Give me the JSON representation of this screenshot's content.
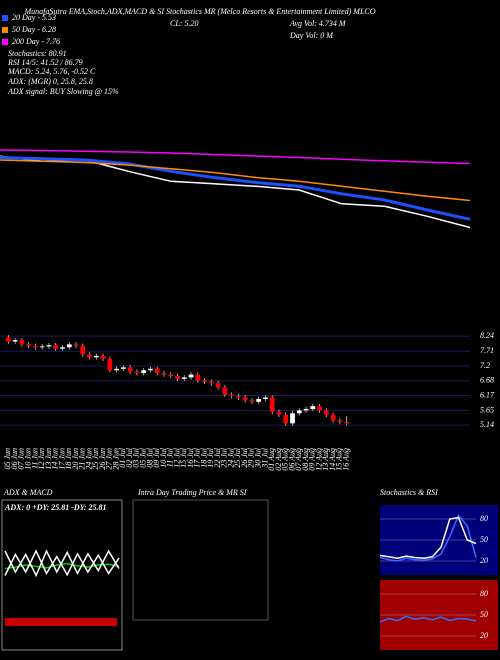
{
  "header": {
    "title": "MunafaSutra EMA,Stoch,ADX,MACD & SI Stochastics MR (Melco Resorts & Entertainment Limited) MLCO",
    "annotations": [
      "Stochastics: 80.91",
      "RSI 14/5: 41.52 / 86.79",
      "MACD: 5.24, 5.76, -0.52 C",
      "ADX: (MGR) 0, 25.8, 25.8",
      "ADX signal: BUY Slowing @ 15%",
      "CL: 5.20",
      "Avg Vol: 4.734 M",
      "Day Vol: 0 M"
    ],
    "intraday_title": "Intra Day Trading Price & MR SI"
  },
  "chart_data": [
    {
      "type": "line",
      "categories": [
        null,
        null,
        null,
        null,
        null,
        null,
        null,
        null,
        null,
        null,
        null,
        null
      ],
      "ylim": [
        1.5,
        10.3
      ],
      "series": [
        {
          "color": "#ffffff",
          "values": [
            8.05,
            7.85,
            7.9,
            7.45,
            7.05,
            6.95,
            6.85,
            6.7,
            6.15,
            6.05,
            5.65,
            5.2
          ]
        },
        {
          "name": "20 Day - 5.53",
          "color": "#1e50ff",
          "values": [
            8.0,
            7.95,
            7.9,
            7.75,
            7.45,
            7.2,
            7.0,
            6.85,
            6.55,
            6.3,
            5.9,
            5.53
          ]
        },
        {
          "name": "50 Day - 6.28",
          "color": "#ff8c00",
          "values": [
            7.9,
            7.85,
            7.8,
            7.7,
            7.55,
            7.4,
            7.2,
            7.05,
            6.85,
            6.65,
            6.45,
            6.28
          ]
        },
        {
          "name": "200 Day - 7.76",
          "color": "#ff00ff",
          "values": [
            8.3,
            8.28,
            8.25,
            8.22,
            8.18,
            8.12,
            8.06,
            8.0,
            7.93,
            7.87,
            7.81,
            7.76
          ]
        }
      ]
    },
    {
      "type": "candlestick",
      "up_color": "#ffffff",
      "down_color": "#ff0000",
      "grid": true,
      "ylim": [
        4.62,
        8.8
      ],
      "yticks": [
        8.24,
        7.71,
        7.2,
        6.68,
        6.17,
        5.65,
        5.14
      ],
      "categories": [
        "05 Jun",
        "06 Jun",
        "07 Jun",
        "10 Jun",
        "11 Jun",
        "12 Jun",
        "13 Jun",
        "14 Jun",
        "17 Jun",
        "18 Jun",
        "20 Jun",
        "21 Jun",
        "24 Jun",
        "25 Jun",
        "26 Jun",
        "27 Jun",
        "28 Jun",
        "01 Jul",
        "02 Jul",
        "03 Jul",
        "05 Jul",
        "08 Jul",
        "09 Jul",
        "10 Jul",
        "11 Jul",
        "12 Jul",
        "15 Jul",
        "16 Jul",
        "17 Jul",
        "18 Jul",
        "19 Jul",
        "22 Jul",
        "23 Jul",
        "24 Jul",
        "25 Jul",
        "26 Jul",
        "29 Jul",
        "30 Jul",
        "31 Jul",
        "01 Aug",
        "02 Aug",
        "05 Aug",
        "06 Aug",
        "07 Aug",
        "08 Aug",
        "09 Aug",
        "12 Aug",
        "13 Aug",
        "14 Aug",
        "15 Aug",
        "16 Aug"
      ],
      "open": [
        8.2,
        8.05,
        8.1,
        7.95,
        7.9,
        7.85,
        7.88,
        7.92,
        7.8,
        7.85,
        7.95,
        7.9,
        7.6,
        7.5,
        7.55,
        7.45,
        7.05,
        7.1,
        7.15,
        7.0,
        6.95,
        7.05,
        7.1,
        6.95,
        6.9,
        6.85,
        6.75,
        6.8,
        6.9,
        6.7,
        6.65,
        6.6,
        6.45,
        6.2,
        6.15,
        6.1,
        6.0,
        5.95,
        6.05,
        6.1,
        5.6,
        5.5,
        5.2,
        5.55,
        5.65,
        5.7,
        5.8,
        5.65,
        5.5,
        5.3,
        5.25
      ],
      "high": [
        8.28,
        8.18,
        8.18,
        8.03,
        7.98,
        7.96,
        8.0,
        8.0,
        7.93,
        8.03,
        8.03,
        7.98,
        7.68,
        7.63,
        7.63,
        7.53,
        7.18,
        7.23,
        7.23,
        7.08,
        7.13,
        7.18,
        7.18,
        7.03,
        6.98,
        6.93,
        6.88,
        6.98,
        6.98,
        6.78,
        6.73,
        6.68,
        6.53,
        6.28,
        6.23,
        6.18,
        6.08,
        6.13,
        6.18,
        6.18,
        5.68,
        5.58,
        5.63,
        5.73,
        5.78,
        5.88,
        5.88,
        5.73,
        5.58,
        5.38,
        5.45
      ],
      "low": [
        7.97,
        7.97,
        7.87,
        7.82,
        7.77,
        7.77,
        7.8,
        7.72,
        7.72,
        7.77,
        7.82,
        7.52,
        7.42,
        7.42,
        7.37,
        6.97,
        6.97,
        7.02,
        6.92,
        6.87,
        6.87,
        6.97,
        6.87,
        6.82,
        6.77,
        6.67,
        6.67,
        6.72,
        6.62,
        6.57,
        6.52,
        6.37,
        6.12,
        6.07,
        6.02,
        5.92,
        5.87,
        5.87,
        5.97,
        5.52,
        5.42,
        5.12,
        5.12,
        5.47,
        5.57,
        5.62,
        5.57,
        5.42,
        5.22,
        5.17,
        5.13
      ],
      "close": [
        8.05,
        8.1,
        7.95,
        7.9,
        7.85,
        7.88,
        7.92,
        7.8,
        7.85,
        7.95,
        7.9,
        7.6,
        7.5,
        7.55,
        7.45,
        7.05,
        7.1,
        7.15,
        7.0,
        6.95,
        7.05,
        7.1,
        6.95,
        6.9,
        6.85,
        6.75,
        6.8,
        6.9,
        6.7,
        6.65,
        6.6,
        6.45,
        6.2,
        6.15,
        6.1,
        6.0,
        5.95,
        6.05,
        6.1,
        5.6,
        5.5,
        5.2,
        5.55,
        5.65,
        5.7,
        5.8,
        5.65,
        5.5,
        5.3,
        5.25,
        5.2
      ]
    },
    {
      "type": "line",
      "title": "ADX & MACD",
      "subtitle": "ADX: 0 +DY: 25.81 -DY: 25.81",
      "ylim": [
        0,
        100
      ],
      "categories": [
        null,
        null,
        null,
        null,
        null,
        null,
        null,
        null,
        null,
        null,
        null,
        null
      ],
      "series": [
        {
          "color": "#00cc00",
          "values": [
            45,
            47,
            50,
            48,
            46,
            50,
            52,
            49,
            47,
            50,
            51,
            48
          ]
        },
        {
          "color": "#ffffff",
          "values": [
            70,
            40,
            65,
            35,
            70,
            40,
            68,
            38,
            66,
            42,
            70,
            45
          ]
        },
        {
          "color": "#ffffff",
          "values": [
            35,
            65,
            40,
            70,
            38,
            62,
            36,
            66,
            40,
            64,
            38,
            60
          ]
        }
      ]
    },
    {
      "type": "line",
      "title": "Stochastics & RSI",
      "ylim": [
        0,
        100
      ],
      "yticks": [
        80,
        50,
        20
      ],
      "background": "#00007a",
      "categories": [
        null,
        null,
        null,
        null,
        null,
        null,
        null,
        null,
        null,
        null,
        null,
        null
      ],
      "series": [
        {
          "color": "#3a6bff",
          "values": [
            25,
            22,
            20,
            24,
            22,
            21,
            23,
            30,
            55,
            85,
            70,
            25
          ]
        },
        {
          "color": "#ffffff",
          "values": [
            28,
            26,
            24,
            27,
            25,
            24,
            26,
            40,
            80,
            82,
            50,
            45
          ]
        }
      ]
    },
    {
      "type": "line",
      "ylim": [
        0,
        100
      ],
      "yticks": [
        80,
        50,
        20
      ],
      "background": "#a00000",
      "categories": [
        null,
        null,
        null,
        null,
        null,
        null,
        null,
        null,
        null,
        null,
        null,
        null
      ],
      "series": [
        {
          "color": "#3a6bff",
          "values": [
            40,
            45,
            42,
            48,
            44,
            46,
            43,
            47,
            42,
            45,
            44,
            41.52
          ]
        }
      ]
    }
  ]
}
